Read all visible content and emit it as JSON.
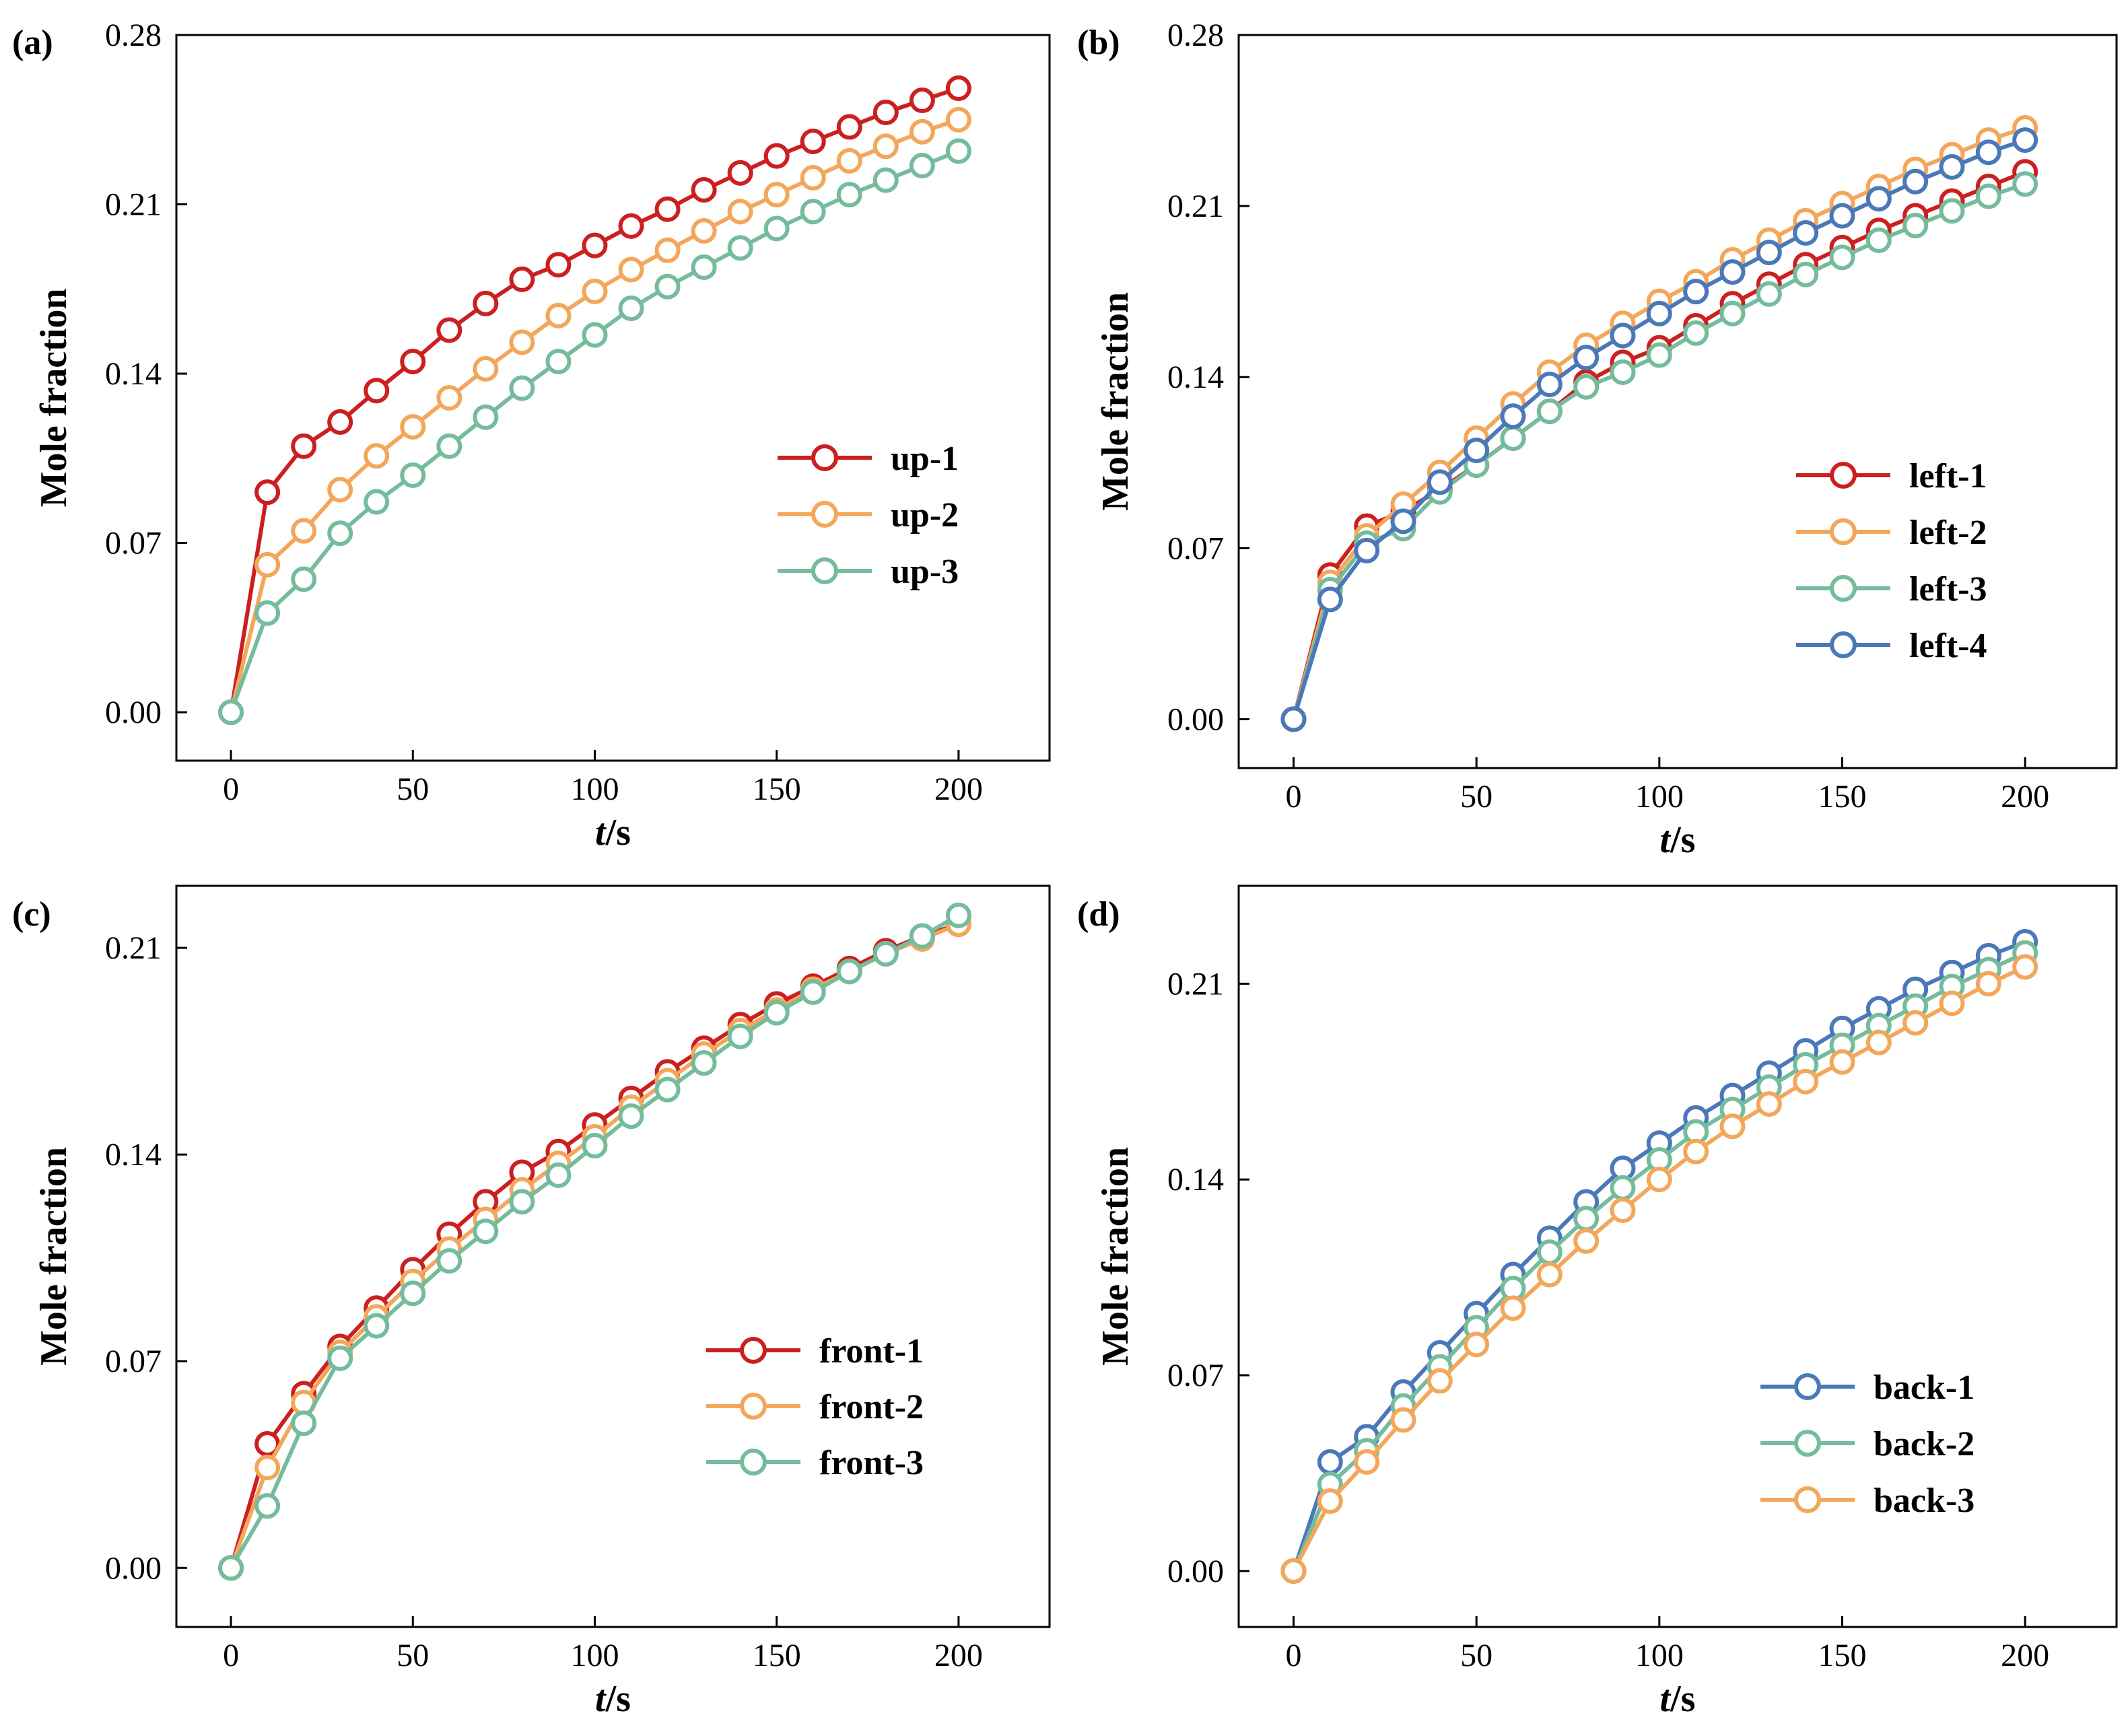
{
  "chart_data": [
    {
      "type": "line",
      "panel_label": "(a)",
      "xlabel_italic": "t",
      "xlabel_unit": "/s",
      "ylabel": "Mole fraction",
      "xlim": [
        -15,
        225
      ],
      "ylim": [
        -0.02,
        0.28
      ],
      "xticks": [
        "0",
        "50",
        "100",
        "150",
        "200"
      ],
      "yticks": [
        "0.00",
        "0.07",
        "0.14",
        "0.21",
        "0.28"
      ],
      "legend_position": "center-right",
      "x": [
        0,
        10,
        20,
        30,
        40,
        50,
        60,
        70,
        80,
        90,
        100,
        110,
        120,
        130,
        140,
        150,
        160,
        170,
        180,
        190,
        200
      ],
      "series": [
        {
          "name": "up-1",
          "color": "#cc1f1f",
          "values": [
            0.0,
            0.091,
            0.11,
            0.12,
            0.133,
            0.145,
            0.158,
            0.169,
            0.179,
            0.185,
            0.193,
            0.201,
            0.208,
            0.216,
            0.223,
            0.23,
            0.236,
            0.242,
            0.248,
            0.253,
            0.258
          ]
        },
        {
          "name": "up-2",
          "color": "#f3a75a",
          "values": [
            0.0,
            0.061,
            0.075,
            0.092,
            0.106,
            0.118,
            0.13,
            0.142,
            0.153,
            0.164,
            0.174,
            0.183,
            0.191,
            0.199,
            0.207,
            0.214,
            0.221,
            0.228,
            0.234,
            0.24,
            0.245
          ]
        },
        {
          "name": "up-3",
          "color": "#74bc9c",
          "values": [
            0.0,
            0.041,
            0.055,
            0.074,
            0.087,
            0.098,
            0.11,
            0.122,
            0.134,
            0.145,
            0.156,
            0.167,
            0.176,
            0.184,
            0.192,
            0.2,
            0.207,
            0.214,
            0.22,
            0.226,
            0.232
          ]
        }
      ]
    },
    {
      "type": "line",
      "panel_label": "(b)",
      "xlabel_italic": "t",
      "xlabel_unit": "/s",
      "ylabel": "Mole fraction",
      "xlim": [
        -15,
        225
      ],
      "ylim": [
        -0.02,
        0.28
      ],
      "xticks": [
        "0",
        "50",
        "100",
        "150",
        "200"
      ],
      "yticks": [
        "0.00",
        "0.07",
        "0.14",
        "0.21",
        "0.28"
      ],
      "legend_position": "center-right",
      "x": [
        0,
        10,
        20,
        30,
        40,
        50,
        60,
        70,
        80,
        90,
        100,
        110,
        120,
        130,
        140,
        150,
        160,
        170,
        180,
        190,
        200
      ],
      "series": [
        {
          "name": "left-1",
          "color": "#cc1f1f",
          "values": [
            0.0,
            0.059,
            0.079,
            0.085,
            0.094,
            0.104,
            0.115,
            0.126,
            0.138,
            0.146,
            0.152,
            0.161,
            0.17,
            0.178,
            0.186,
            0.193,
            0.2,
            0.206,
            0.212,
            0.218,
            0.224
          ]
        },
        {
          "name": "left-2",
          "color": "#f3a75a",
          "values": [
            0.0,
            0.056,
            0.075,
            0.088,
            0.101,
            0.115,
            0.129,
            0.142,
            0.153,
            0.162,
            0.171,
            0.179,
            0.188,
            0.196,
            0.204,
            0.211,
            0.218,
            0.225,
            0.231,
            0.237,
            0.242
          ]
        },
        {
          "name": "left-3",
          "color": "#74bc9c",
          "values": [
            0.0,
            0.053,
            0.072,
            0.078,
            0.093,
            0.104,
            0.115,
            0.126,
            0.136,
            0.142,
            0.149,
            0.158,
            0.166,
            0.174,
            0.182,
            0.189,
            0.196,
            0.202,
            0.208,
            0.214,
            0.219
          ]
        },
        {
          "name": "left-4",
          "color": "#4a78b8",
          "values": [
            0.0,
            0.049,
            0.069,
            0.081,
            0.097,
            0.11,
            0.124,
            0.137,
            0.148,
            0.157,
            0.166,
            0.175,
            0.183,
            0.191,
            0.199,
            0.206,
            0.213,
            0.22,
            0.226,
            0.232,
            0.237
          ]
        }
      ]
    },
    {
      "type": "line",
      "panel_label": "(c)",
      "xlabel_italic": "t",
      "xlabel_unit": "/s",
      "ylabel": "Mole fraction",
      "xlim": [
        -15,
        225
      ],
      "ylim": [
        -0.02,
        0.231
      ],
      "xticks": [
        "0",
        "50",
        "100",
        "150",
        "200"
      ],
      "yticks": [
        "0.00",
        "0.07",
        "0.14",
        "0.21"
      ],
      "legend_position": "bottom-right",
      "x": [
        0,
        10,
        20,
        30,
        40,
        50,
        60,
        70,
        80,
        90,
        100,
        110,
        120,
        130,
        140,
        150,
        160,
        170,
        180,
        190,
        200
      ],
      "series": [
        {
          "name": "front-1",
          "color": "#cc1f1f",
          "values": [
            0.0,
            0.042,
            0.059,
            0.075,
            0.088,
            0.101,
            0.113,
            0.124,
            0.134,
            0.141,
            0.15,
            0.159,
            0.168,
            0.176,
            0.184,
            0.191,
            0.197,
            0.203,
            0.209,
            0.214,
            0.218
          ]
        },
        {
          "name": "front-2",
          "color": "#f3a75a",
          "values": [
            0.0,
            0.034,
            0.056,
            0.073,
            0.085,
            0.097,
            0.108,
            0.118,
            0.128,
            0.137,
            0.146,
            0.156,
            0.165,
            0.174,
            0.182,
            0.189,
            0.196,
            0.202,
            0.208,
            0.213,
            0.218
          ]
        },
        {
          "name": "front-3",
          "color": "#74bc9c",
          "values": [
            0.0,
            0.021,
            0.049,
            0.071,
            0.082,
            0.093,
            0.104,
            0.114,
            0.124,
            0.133,
            0.143,
            0.153,
            0.162,
            0.171,
            0.18,
            0.188,
            0.195,
            0.202,
            0.208,
            0.214,
            0.221
          ]
        }
      ]
    },
    {
      "type": "line",
      "panel_label": "(d)",
      "xlabel_italic": "t",
      "xlabel_unit": "/s",
      "ylabel": "Mole fraction",
      "xlim": [
        -15,
        225
      ],
      "ylim": [
        -0.02,
        0.245
      ],
      "xticks": [
        "0",
        "50",
        "100",
        "150",
        "200"
      ],
      "yticks": [
        "0.00",
        "0.07",
        "0.14",
        "0.21"
      ],
      "legend_position": "bottom-right",
      "x": [
        0,
        10,
        20,
        30,
        40,
        50,
        60,
        70,
        80,
        90,
        100,
        110,
        120,
        130,
        140,
        150,
        160,
        170,
        180,
        190,
        200
      ],
      "series": [
        {
          "name": "back-1",
          "color": "#4a78b8",
          "values": [
            0.0,
            0.039,
            0.048,
            0.064,
            0.078,
            0.092,
            0.106,
            0.119,
            0.132,
            0.144,
            0.153,
            0.162,
            0.17,
            0.178,
            0.186,
            0.194,
            0.201,
            0.208,
            0.214,
            0.22,
            0.225
          ]
        },
        {
          "name": "back-2",
          "color": "#74bc9c",
          "values": [
            0.0,
            0.031,
            0.043,
            0.059,
            0.073,
            0.087,
            0.101,
            0.114,
            0.126,
            0.137,
            0.147,
            0.157,
            0.165,
            0.173,
            0.181,
            0.188,
            0.195,
            0.202,
            0.209,
            0.215,
            0.221
          ]
        },
        {
          "name": "back-3",
          "color": "#f3a75a",
          "values": [
            0.0,
            0.025,
            0.039,
            0.054,
            0.068,
            0.081,
            0.094,
            0.106,
            0.118,
            0.129,
            0.14,
            0.15,
            0.159,
            0.167,
            0.175,
            0.182,
            0.189,
            0.196,
            0.203,
            0.21,
            0.216
          ]
        }
      ]
    }
  ]
}
